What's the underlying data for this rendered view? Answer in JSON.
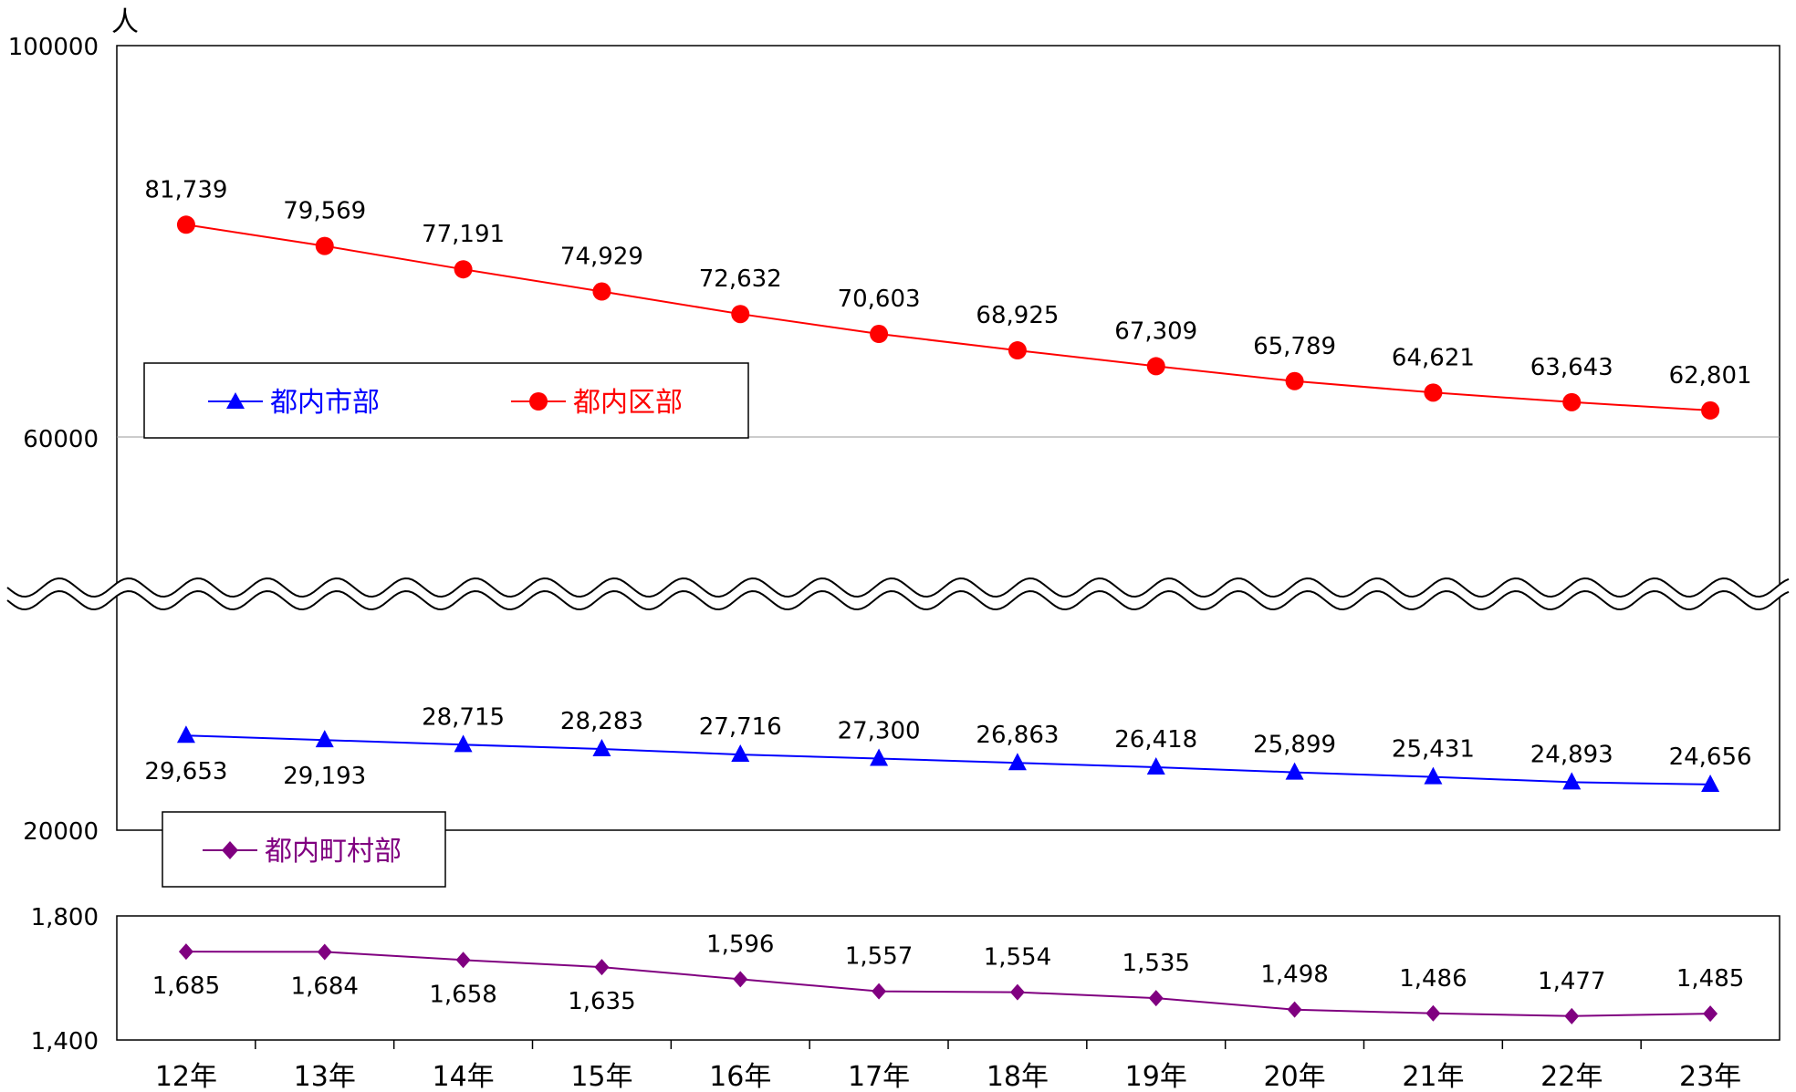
{
  "chart_data": {
    "type": "line",
    "unit_label": "人",
    "x": [
      "12年",
      "13年",
      "14年",
      "15年",
      "16年",
      "17年",
      "18年",
      "19年",
      "20年",
      "21年",
      "22年",
      "23年"
    ],
    "upper_axis": {
      "ylim": [
        20000,
        100000
      ],
      "ticks": [
        "100000",
        "60000",
        "20000"
      ],
      "broken": true
    },
    "lower_axis": {
      "ylim": [
        1400,
        1800
      ],
      "ticks": [
        "1,800",
        "1,400"
      ]
    },
    "series": [
      {
        "name": "都内区部",
        "color": "#ff0000",
        "marker": "circle",
        "axis": "upper",
        "values": [
          81739,
          79569,
          77191,
          74929,
          72632,
          70603,
          68925,
          67309,
          65789,
          64621,
          63643,
          62801
        ],
        "labels": [
          "81,739",
          "79,569",
          "77,191",
          "74,929",
          "72,632",
          "70,603",
          "68,925",
          "67,309",
          "65,789",
          "64,621",
          "63,643",
          "62,801"
        ]
      },
      {
        "name": "都内市部",
        "color": "#0000ff",
        "marker": "triangle",
        "axis": "upper",
        "values": [
          29653,
          29193,
          28715,
          28283,
          27716,
          27300,
          26863,
          26418,
          25899,
          25431,
          24893,
          24656
        ],
        "labels": [
          "29,653",
          "29,193",
          "28,715",
          "28,283",
          "27,716",
          "27,300",
          "26,863",
          "26,418",
          "25,899",
          "25,431",
          "24,893",
          "24,656"
        ]
      },
      {
        "name": "都内町村部",
        "color": "#800080",
        "marker": "diamond",
        "axis": "lower",
        "values": [
          1685,
          1684,
          1658,
          1635,
          1596,
          1557,
          1554,
          1535,
          1498,
          1486,
          1477,
          1485
        ],
        "labels": [
          "1,685",
          "1,684",
          "1,658",
          "1,635",
          "1,596",
          "1,557",
          "1,554",
          "1,535",
          "1,498",
          "1,486",
          "1,477",
          "1,485"
        ]
      }
    ]
  }
}
